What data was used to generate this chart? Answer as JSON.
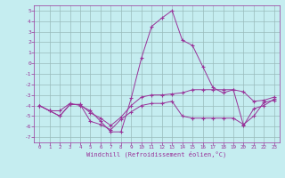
{
  "xlabel": "Windchill (Refroidissement éolien,°C)",
  "bg_color": "#c5edf0",
  "line_color": "#993399",
  "grid_color": "#99bbbb",
  "ylim": [
    -7.5,
    5.5
  ],
  "xlim": [
    -0.5,
    23.5
  ],
  "yticks": [
    -7,
    -6,
    -5,
    -4,
    -3,
    -2,
    -1,
    0,
    1,
    2,
    3,
    4,
    5
  ],
  "xticks": [
    0,
    1,
    2,
    3,
    4,
    5,
    6,
    7,
    8,
    9,
    10,
    11,
    12,
    13,
    14,
    15,
    16,
    17,
    18,
    19,
    20,
    21,
    22,
    23
  ],
  "line1": [
    -4.0,
    -4.5,
    -4.5,
    -3.8,
    -4.0,
    -4.5,
    -5.5,
    -6.5,
    -6.5,
    -3.3,
    0.5,
    3.5,
    4.3,
    5.0,
    2.2,
    1.7,
    -0.3,
    -2.3,
    -2.8,
    -2.5,
    -5.9,
    -4.3,
    -4.0,
    -3.4
  ],
  "line2": [
    -4.0,
    -4.5,
    -5.0,
    -3.9,
    -3.9,
    -5.5,
    -5.8,
    -6.3,
    -5.3,
    -4.6,
    -4.0,
    -3.8,
    -3.8,
    -3.6,
    -5.0,
    -5.2,
    -5.2,
    -5.2,
    -5.2,
    -5.2,
    -5.8,
    -5.0,
    -3.7,
    -3.5
  ],
  "line3": [
    -4.0,
    -4.5,
    -5.0,
    -3.9,
    -3.9,
    -4.7,
    -5.2,
    -5.9,
    -5.1,
    -4.0,
    -3.2,
    -3.0,
    -3.0,
    -2.9,
    -2.8,
    -2.5,
    -2.5,
    -2.5,
    -2.5,
    -2.5,
    -2.7,
    -3.6,
    -3.5,
    -3.2
  ]
}
